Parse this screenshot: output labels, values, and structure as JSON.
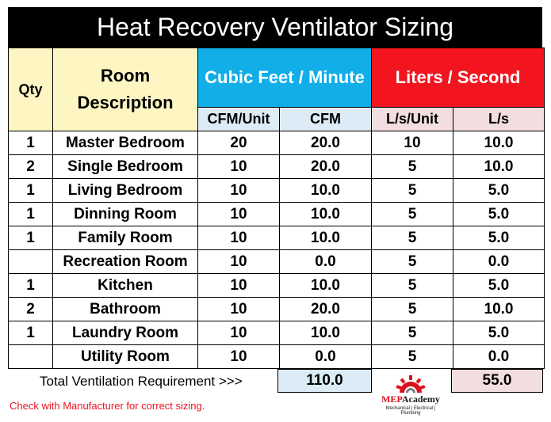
{
  "title": "Heat Recovery Ventilator Sizing",
  "header": {
    "qty": "Qty",
    "room": "Room Description",
    "cfm_group": "Cubic Feet / Minute",
    "ls_group": "Liters / Second",
    "cfm_unit": "CFM/Unit",
    "cfm": "CFM",
    "ls_unit": "L/s/Unit",
    "ls": "L/s"
  },
  "rows": [
    {
      "qty": "1",
      "room": "Master Bedroom",
      "cfm_unit": "20",
      "cfm": "20.0",
      "ls_unit": "10",
      "ls": "10.0"
    },
    {
      "qty": "2",
      "room": "Single Bedroom",
      "cfm_unit": "10",
      "cfm": "20.0",
      "ls_unit": "5",
      "ls": "10.0"
    },
    {
      "qty": "1",
      "room": "Living Bedroom",
      "cfm_unit": "10",
      "cfm": "10.0",
      "ls_unit": "5",
      "ls": "5.0"
    },
    {
      "qty": "1",
      "room": "Dinning Room",
      "cfm_unit": "10",
      "cfm": "10.0",
      "ls_unit": "5",
      "ls": "5.0"
    },
    {
      "qty": "1",
      "room": "Family Room",
      "cfm_unit": "10",
      "cfm": "10.0",
      "ls_unit": "5",
      "ls": "5.0"
    },
    {
      "qty": "",
      "room": "Recreation Room",
      "cfm_unit": "10",
      "cfm": "0.0",
      "ls_unit": "5",
      "ls": "0.0"
    },
    {
      "qty": "1",
      "room": "Kitchen",
      "cfm_unit": "10",
      "cfm": "10.0",
      "ls_unit": "5",
      "ls": "5.0"
    },
    {
      "qty": "2",
      "room": "Bathroom",
      "cfm_unit": "10",
      "cfm": "20.0",
      "ls_unit": "5",
      "ls": "10.0"
    },
    {
      "qty": "1",
      "room": "Laundry Room",
      "cfm_unit": "10",
      "cfm": "10.0",
      "ls_unit": "5",
      "ls": "5.0"
    },
    {
      "qty": "",
      "room": "Utility Room",
      "cfm_unit": "10",
      "cfm": "0.0",
      "ls_unit": "5",
      "ls": "0.0"
    }
  ],
  "totals": {
    "label": "Total Ventilation Requirement >>>",
    "cfm": "110.0",
    "ls": "55.0"
  },
  "note": "Check with Manufacturer for correct sizing.",
  "logo": {
    "name_part1": "MEP",
    "name_part2": "Academy",
    "tagline": "Mechanical | Electrical | Plumbing"
  },
  "colors": {
    "title_bg": "#000000",
    "header_yellow": "#fdf6c3",
    "cfm_blue": "#11aee8",
    "ls_red": "#f2141e",
    "sub_blue": "#dcebf5",
    "sub_pink": "#f2dede",
    "note_red": "#e8141e"
  }
}
